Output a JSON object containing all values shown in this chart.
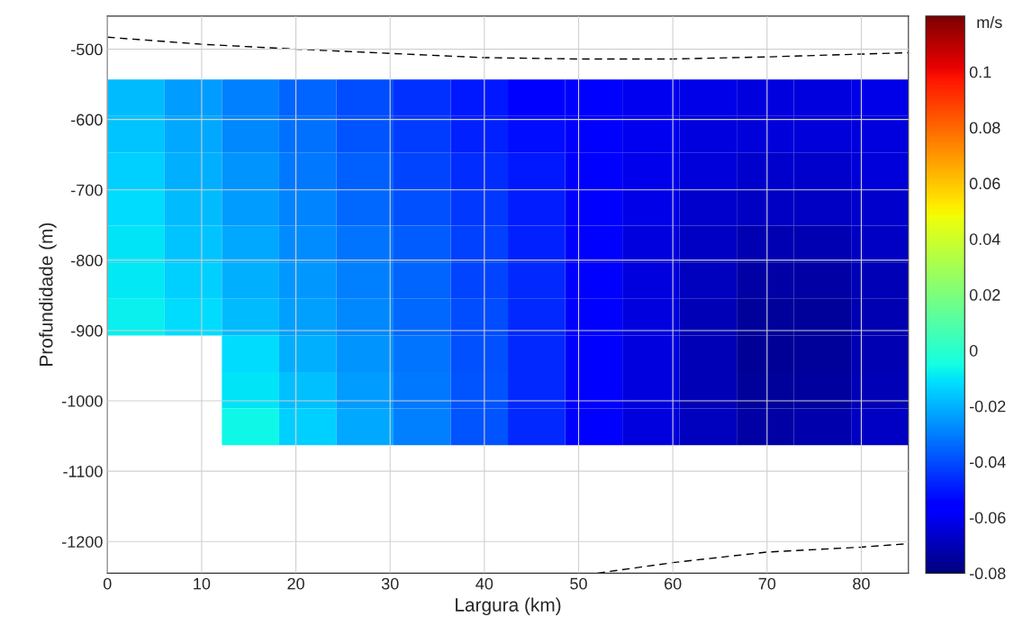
{
  "chart_data": {
    "type": "heatmap",
    "xlabel": "Largura (km)",
    "ylabel": "Profundidade (m)",
    "clabel": "m/s",
    "x": [
      3.04,
      9.11,
      15.18,
      21.25,
      27.32,
      33.39,
      39.46,
      45.54,
      51.61,
      57.68,
      63.75,
      69.82,
      75.89,
      81.96
    ],
    "y": [
      -569,
      -621,
      -673,
      -725,
      -777,
      -829,
      -881,
      -933,
      -985,
      -1037
    ],
    "cells": [
      [
        -0.018,
        -0.024,
        -0.03,
        -0.035,
        -0.04,
        -0.045,
        -0.05,
        -0.055,
        -0.058,
        -0.06,
        -0.062,
        -0.063,
        -0.063,
        -0.062
      ],
      [
        -0.016,
        -0.022,
        -0.028,
        -0.033,
        -0.038,
        -0.043,
        -0.048,
        -0.052,
        -0.057,
        -0.06,
        -0.063,
        -0.064,
        -0.064,
        -0.063
      ],
      [
        -0.014,
        -0.02,
        -0.026,
        -0.031,
        -0.036,
        -0.041,
        -0.046,
        -0.05,
        -0.056,
        -0.061,
        -0.064,
        -0.066,
        -0.066,
        -0.064
      ],
      [
        -0.012,
        -0.018,
        -0.024,
        -0.029,
        -0.034,
        -0.039,
        -0.044,
        -0.049,
        -0.056,
        -0.062,
        -0.066,
        -0.068,
        -0.068,
        -0.066
      ],
      [
        -0.01,
        -0.016,
        -0.022,
        -0.027,
        -0.032,
        -0.037,
        -0.042,
        -0.048,
        -0.056,
        -0.063,
        -0.068,
        -0.071,
        -0.071,
        -0.068
      ],
      [
        -0.009,
        -0.014,
        -0.02,
        -0.025,
        -0.03,
        -0.035,
        -0.041,
        -0.047,
        -0.056,
        -0.063,
        -0.069,
        -0.073,
        -0.073,
        -0.07
      ],
      [
        -0.008,
        -0.012,
        -0.018,
        -0.023,
        -0.028,
        -0.034,
        -0.04,
        -0.047,
        -0.055,
        -0.063,
        -0.07,
        -0.075,
        -0.075,
        -0.071
      ],
      [
        null,
        null,
        -0.012,
        -0.02,
        -0.026,
        -0.032,
        -0.039,
        -0.047,
        -0.055,
        -0.063,
        -0.07,
        -0.076,
        -0.075,
        -0.071
      ],
      [
        null,
        null,
        -0.01,
        -0.017,
        -0.024,
        -0.031,
        -0.038,
        -0.047,
        -0.055,
        -0.063,
        -0.07,
        -0.075,
        -0.074,
        -0.07
      ],
      [
        null,
        null,
        -0.006,
        -0.014,
        -0.022,
        -0.03,
        -0.038,
        -0.047,
        -0.056,
        -0.063,
        -0.069,
        -0.073,
        -0.072,
        -0.068
      ]
    ],
    "clim": [
      -0.08,
      0.12
    ],
    "cticks": [
      -0.08,
      -0.06,
      -0.04,
      -0.02,
      0,
      0.02,
      0.04,
      0.06,
      0.08,
      0.1
    ],
    "series": [
      {
        "type": "line",
        "color": "#000000",
        "line_style": "dashed",
        "x": [
          0,
          10,
          20,
          30,
          40,
          50,
          60,
          70,
          80,
          85
        ],
        "values": [
          -483,
          -493,
          -500,
          -506,
          -512,
          -514,
          -514,
          -511,
          -507,
          -505
        ]
      },
      {
        "type": "line",
        "color": "#000000",
        "line_style": "dashed",
        "x": [
          52,
          60,
          70,
          80,
          85
        ],
        "values": [
          -1245,
          -1230,
          -1215,
          -1208,
          -1203
        ]
      }
    ],
    "xlim": [
      0,
      85
    ],
    "xticks": [
      0,
      10,
      20,
      30,
      40,
      50,
      60,
      70,
      80
    ],
    "ylim": [
      -1245,
      -453
    ],
    "yticks": [
      -1200,
      -1100,
      -1000,
      -900,
      -800,
      -700,
      -600,
      -500
    ],
    "grid": true
  }
}
